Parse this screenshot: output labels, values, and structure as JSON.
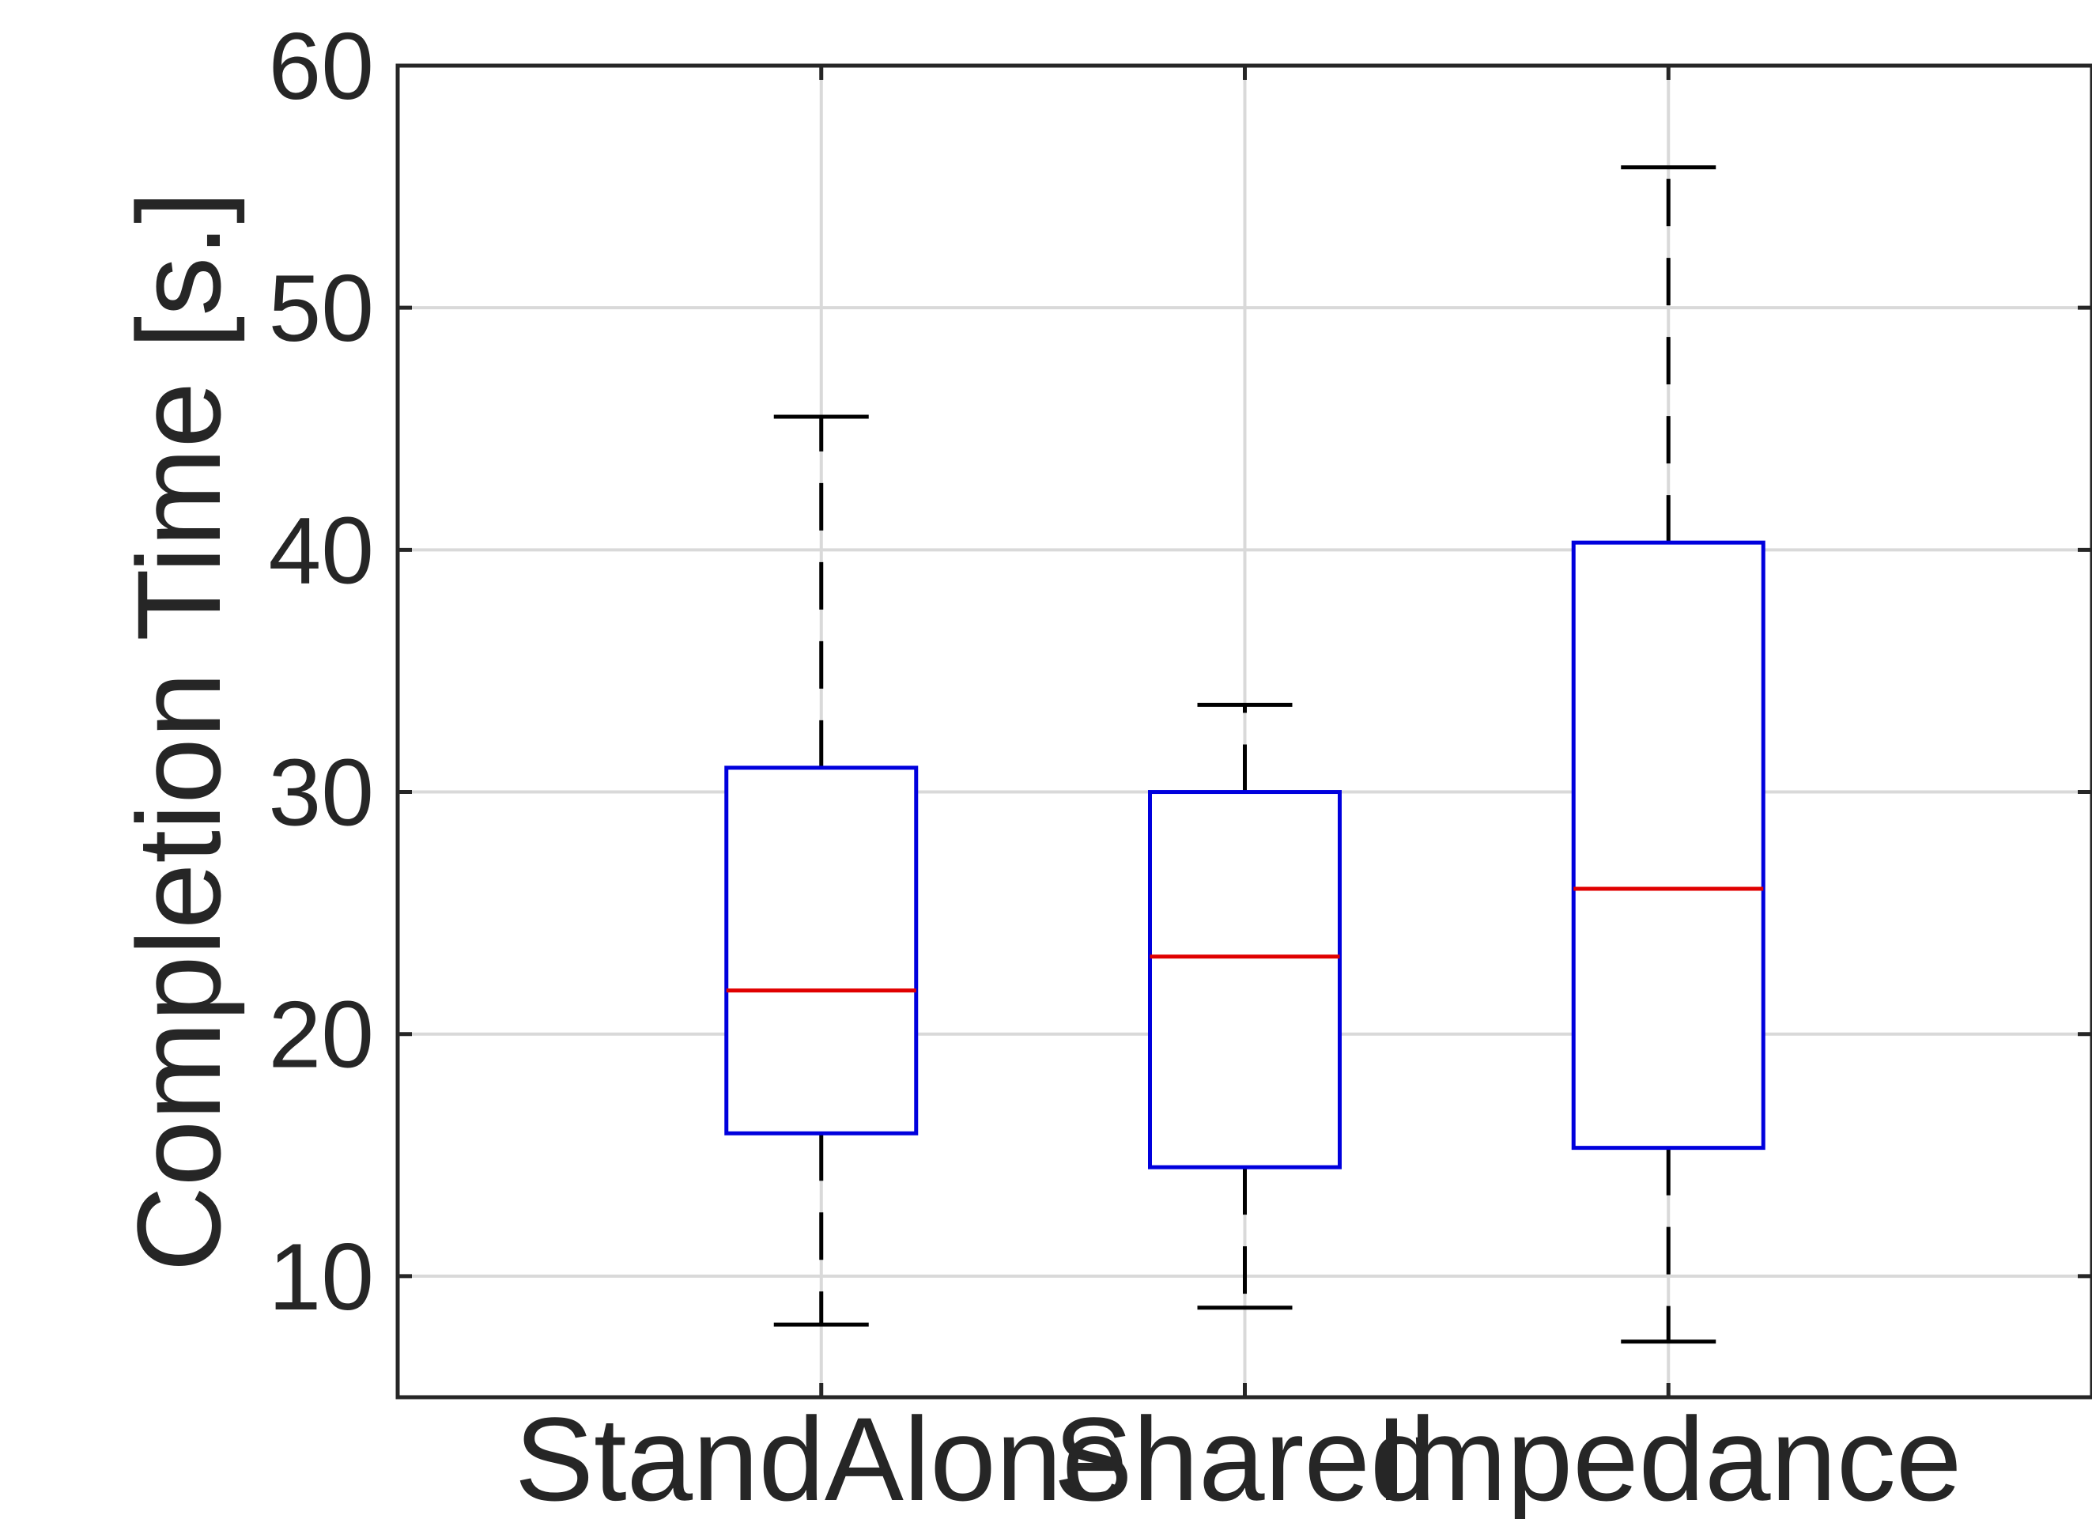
{
  "chart_data": {
    "type": "box",
    "ylabel": "Completion Time [s.]",
    "xlabel": "",
    "ylim": [
      5,
      60
    ],
    "yticks": [
      10,
      20,
      30,
      40,
      50,
      60
    ],
    "grid": true,
    "categories": [
      "StandAlone",
      "Shared",
      "Impedance"
    ],
    "boxes": [
      {
        "category": "StandAlone",
        "whisker_low": 8.0,
        "q1": 15.9,
        "median": 21.8,
        "q3": 31.0,
        "whisker_high": 45.5
      },
      {
        "category": "Shared",
        "whisker_low": 8.7,
        "q1": 14.5,
        "median": 23.2,
        "q3": 30.0,
        "whisker_high": 33.6
      },
      {
        "category": "Impedance",
        "whisker_low": 7.3,
        "q1": 15.3,
        "median": 26.0,
        "q3": 40.3,
        "whisker_high": 55.8
      }
    ],
    "colors": {
      "box": "#0000dd",
      "median": "#e00000",
      "whisker": "#000000",
      "grid": "#d9d9d9",
      "axis": "#262626"
    }
  }
}
